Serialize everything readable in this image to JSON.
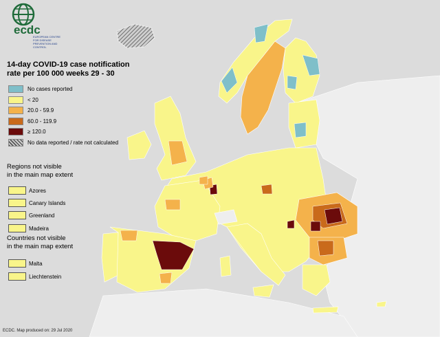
{
  "logo": {
    "text": "ecdc",
    "subtitle": "EUROPEAN CENTRE FOR DISEASE PREVENTION AND CONTROL",
    "icon": "globe-logo-icon"
  },
  "title_line1": "14-day COVID-19 case notification",
  "title_line2": "rate per 100 000 weeks 29 - 30",
  "legend": [
    {
      "label": "No cases reported",
      "color": "#7fbfc9"
    },
    {
      "label": "< 20",
      "color": "#f9f58a"
    },
    {
      "label": "20.0 - 59.9",
      "color": "#f4b24b"
    },
    {
      "label": "60.0 - 119.9",
      "color": "#c96a1b"
    },
    {
      "label": "≥ 120.0",
      "color": "#6b0b0b"
    },
    {
      "label": "No data reported / rate not calculated",
      "color": "hatched"
    }
  ],
  "regions_heading_1": "Regions not visible",
  "regions_heading_2": "in the main map extent",
  "regions": [
    "Azores",
    "Canary Islands",
    "Greenland",
    "Madeira"
  ],
  "countries_heading_1": "Countries not visible",
  "countries_heading_2": "in the main map extent",
  "countries": [
    "Malta",
    "Liechtenstein"
  ],
  "footer": "ECDC. Map produced on: 29 Jul 2020"
}
